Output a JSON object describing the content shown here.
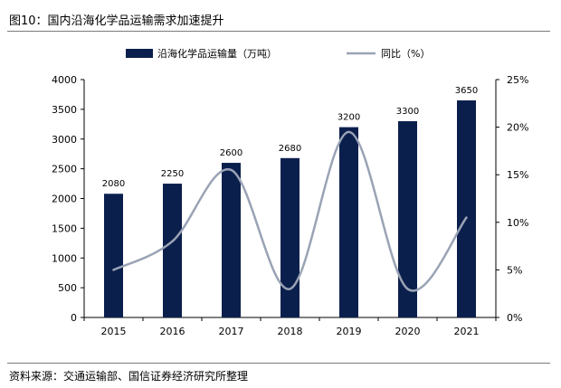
{
  "figure": {
    "title": "图10：国内沿海化学品运输需求加速提升",
    "source": "资料来源：交通运输部、国信证券经济研究所整理"
  },
  "colors": {
    "bar": "#0b1f4d",
    "line": "#9aa3b5",
    "axis": "#000000",
    "rule": "#7a7a7a"
  },
  "chart_data": {
    "type": "bar",
    "title": "",
    "categories": [
      "2015",
      "2016",
      "2017",
      "2018",
      "2019",
      "2020",
      "2021"
    ],
    "series": [
      {
        "name": "沿海化学品运输量（万吨）",
        "type": "bar",
        "axis": "left",
        "values": [
          2080,
          2250,
          2600,
          2680,
          3200,
          3300,
          3650
        ],
        "data_labels": [
          "2080",
          "2250",
          "2600",
          "2680",
          "3200",
          "3300",
          "3650"
        ]
      },
      {
        "name": "同比（%）",
        "type": "line",
        "axis": "right",
        "smooth": true,
        "values": [
          5,
          8,
          15.5,
          3,
          19.5,
          3,
          10.5
        ]
      }
    ],
    "y_left": {
      "min": 0,
      "max": 4000,
      "ticks": [
        0,
        500,
        1000,
        1500,
        2000,
        2500,
        3000,
        3500,
        4000
      ],
      "tick_labels": [
        "0",
        "500",
        "1000",
        "1500",
        "2000",
        "2500",
        "3000",
        "3500",
        "4000"
      ]
    },
    "y_right": {
      "min": 0,
      "max": 25,
      "ticks": [
        0,
        5,
        10,
        15,
        20,
        25
      ],
      "tick_labels": [
        "0%",
        "5%",
        "10%",
        "15%",
        "20%",
        "25%"
      ]
    },
    "legend_position": "top",
    "grid": false
  }
}
